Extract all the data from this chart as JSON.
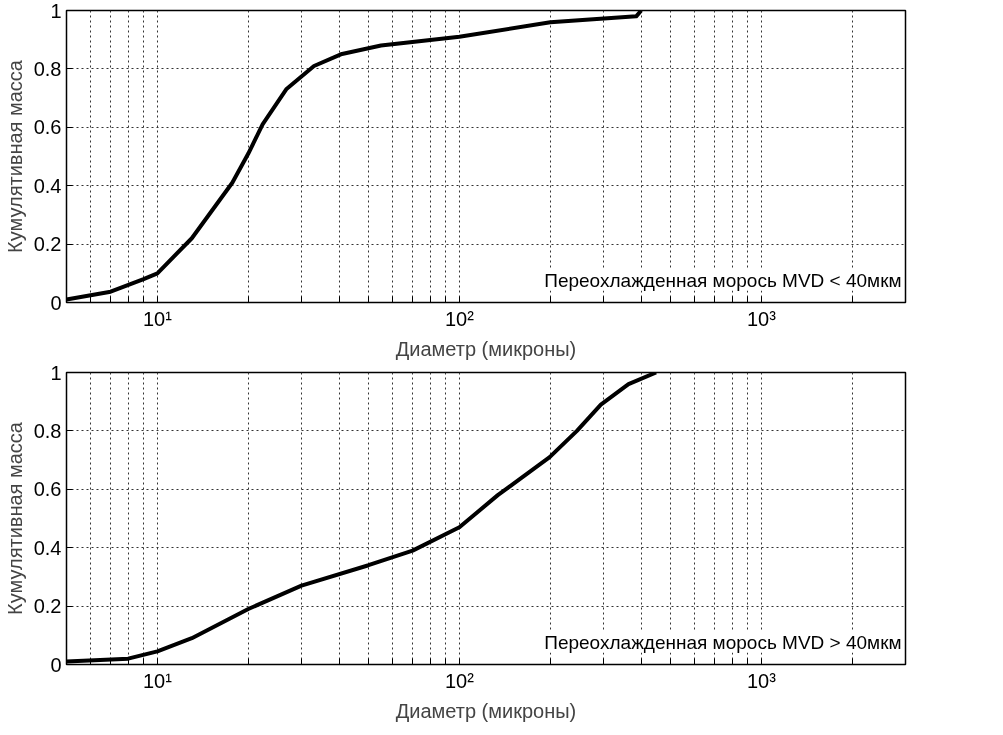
{
  "chart_data": [
    {
      "type": "line",
      "xlabel": "Диаметр (микроны)",
      "ylabel": "Кумулятивная масса",
      "annotations": [
        "Переохлажденная морось MVD < 40мкм"
      ],
      "log": "x",
      "grid": true,
      "xlim": [
        5,
        3000
      ],
      "ylim": [
        0,
        1
      ],
      "xticks": [
        {
          "value": 5,
          "label": null
        },
        {
          "value": 6,
          "label": null
        },
        {
          "value": 7,
          "label": null
        },
        {
          "value": 8,
          "label": null
        },
        {
          "value": 9,
          "label": null
        },
        {
          "value": 10,
          "label": "10¹"
        },
        {
          "value": 20,
          "label": null
        },
        {
          "value": 30,
          "label": null
        },
        {
          "value": 40,
          "label": null
        },
        {
          "value": 50,
          "label": null
        },
        {
          "value": 60,
          "label": null
        },
        {
          "value": 70,
          "label": null
        },
        {
          "value": 80,
          "label": null
        },
        {
          "value": 90,
          "label": null
        },
        {
          "value": 100,
          "label": "10²"
        },
        {
          "value": 200,
          "label": null
        },
        {
          "value": 300,
          "label": null
        },
        {
          "value": 400,
          "label": null
        },
        {
          "value": 500,
          "label": null
        },
        {
          "value": 600,
          "label": null
        },
        {
          "value": 700,
          "label": null
        },
        {
          "value": 800,
          "label": null
        },
        {
          "value": 900,
          "label": null
        },
        {
          "value": 1000,
          "label": "10³"
        },
        {
          "value": 2000,
          "label": null
        }
      ],
      "yticks": [
        0,
        0.2,
        0.4,
        0.6,
        0.8,
        1
      ],
      "series": [
        {
          "color": "#000000",
          "x": [
            5,
            7,
            9,
            10,
            13,
            17.7,
            20,
            22.3,
            26.7,
            33,
            40.5,
            55,
            100,
            200,
            385,
            400
          ],
          "values": [
            0.01,
            0.037,
            0.08,
            0.1,
            0.22,
            0.41,
            0.51,
            0.61,
            0.73,
            0.81,
            0.85,
            0.88,
            0.91,
            0.96,
            0.98,
            1.0
          ]
        }
      ]
    },
    {
      "type": "line",
      "xlabel": "Диаметр (микроны)",
      "ylabel": "Кумулятивная масса",
      "annotations": [
        "Переохлажденная морось MVD > 40мкм"
      ],
      "log": "x",
      "grid": true,
      "xlim": [
        5,
        3000
      ],
      "ylim": [
        0,
        1
      ],
      "xticks": [
        {
          "value": 5,
          "label": null
        },
        {
          "value": 6,
          "label": null
        },
        {
          "value": 7,
          "label": null
        },
        {
          "value": 8,
          "label": null
        },
        {
          "value": 9,
          "label": null
        },
        {
          "value": 10,
          "label": "10¹"
        },
        {
          "value": 20,
          "label": null
        },
        {
          "value": 30,
          "label": null
        },
        {
          "value": 40,
          "label": null
        },
        {
          "value": 50,
          "label": null
        },
        {
          "value": 60,
          "label": null
        },
        {
          "value": 70,
          "label": null
        },
        {
          "value": 80,
          "label": null
        },
        {
          "value": 90,
          "label": null
        },
        {
          "value": 100,
          "label": "10²"
        },
        {
          "value": 200,
          "label": null
        },
        {
          "value": 300,
          "label": null
        },
        {
          "value": 400,
          "label": null
        },
        {
          "value": 500,
          "label": null
        },
        {
          "value": 600,
          "label": null
        },
        {
          "value": 700,
          "label": null
        },
        {
          "value": 800,
          "label": null
        },
        {
          "value": 900,
          "label": null
        },
        {
          "value": 1000,
          "label": "10³"
        },
        {
          "value": 2000,
          "label": null
        }
      ],
      "yticks": [
        0,
        0.2,
        0.4,
        0.6,
        0.8,
        1
      ],
      "series": [
        {
          "color": "#000000",
          "x": [
            5,
            8,
            10,
            13,
            20,
            30,
            50,
            70,
            100,
            134,
            199,
            245,
            294,
            363,
            448
          ],
          "values": [
            0.01,
            0.02,
            0.045,
            0.09,
            0.19,
            0.27,
            0.34,
            0.39,
            0.47,
            0.58,
            0.71,
            0.8,
            0.89,
            0.96,
            1.0
          ]
        }
      ]
    }
  ]
}
